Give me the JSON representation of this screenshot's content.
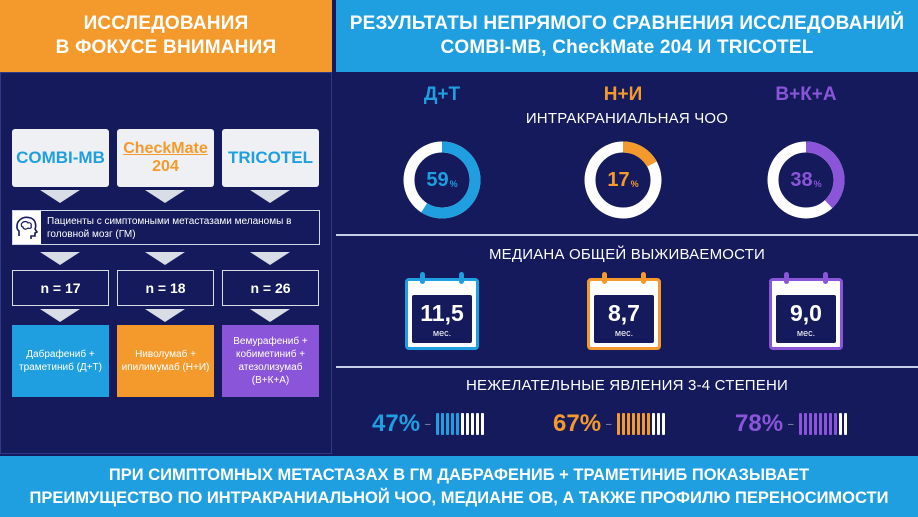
{
  "header_left": {
    "line1": "ИССЛЕДОВАНИЯ",
    "line2": "В ФОКУСЕ ВНИМАНИЯ"
  },
  "header_right": {
    "line1": "РЕЗУЛЬТАТЫ НЕПРЯМОГО СРАВНЕНИЯ ИССЛЕДОВАНИЙ",
    "line2": "COMBI-MB, CheckMate 204 И TRICOTEL"
  },
  "studies": [
    {
      "label1": "COMBI-MB",
      "label2": ""
    },
    {
      "label1": "CheckMate",
      "label2": "204"
    },
    {
      "label1": "TRICOTEL",
      "label2": ""
    }
  ],
  "patients_text": "Пациенты с симптомными метастазами меланомы в головной мозг (ГМ)",
  "n_values": [
    "n = 17",
    "n = 18",
    "n = 26"
  ],
  "arms": [
    {
      "text": "Дабрафениб + траметиниб (Д+Т)",
      "color": "#1f9fe0"
    },
    {
      "text": "Ниволумаб + ипилимумаб (Н+И)",
      "color": "#f49a2c"
    },
    {
      "text": "Вемурафениб + кобиметиниб + атезолизумаб (В+К+А)",
      "color": "#8a55d8"
    }
  ],
  "arm_labels": [
    "Д+Т",
    "Н+И",
    "В+К+А"
  ],
  "colors": {
    "dt": "#1f9fe0",
    "ni": "#f49a2c",
    "vka": "#8a55d8",
    "bg": "#141a5c"
  },
  "section_titles": {
    "orr": "ИНТРАКРАНИАЛЬНАЯ ЧОО",
    "os": "МЕДИАНА ОБЩЕЙ ВЫЖИВАЕМОСТИ",
    "ae": "НЕЖЕЛАТЕЛЬНЫЕ ЯВЛЕНИЯ 3-4 СТЕПЕНИ"
  },
  "orr": [
    {
      "value": "59",
      "unit": "%",
      "fraction": 0.59
    },
    {
      "value": "17",
      "unit": "%",
      "fraction": 0.17
    },
    {
      "value": "38",
      "unit": "%",
      "fraction": 0.38
    }
  ],
  "os": [
    {
      "value": "11,5",
      "unit": "мес."
    },
    {
      "value": "8,7",
      "unit": "мес."
    },
    {
      "value": "9,0",
      "unit": "мес."
    }
  ],
  "ae": [
    {
      "value": "47%",
      "filled": 5,
      "total": 10
    },
    {
      "value": "67%",
      "filled": 7,
      "total": 10
    },
    {
      "value": "78%",
      "filled": 8,
      "total": 10
    }
  ],
  "footer": {
    "line1": "ПРИ СИМПТОМНЫХ МЕТАСТАЗАХ В ГМ ДАБРАФЕНИБ + ТРАМЕТИНИБ ПОКАЗЫВАЕТ",
    "line2": "ПРЕИМУЩЕСТВО ПО ИНТРАКРАНИАЛЬНОЙ ЧОО, МЕДИАНЕ ОВ, А ТАКЖЕ ПРОФИЛЮ ПЕРЕНОСИМОСТИ"
  }
}
